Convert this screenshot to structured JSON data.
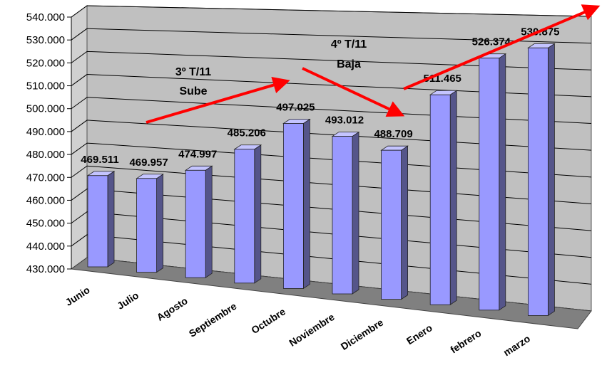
{
  "chart_data": {
    "type": "bar",
    "categories": [
      "Junio",
      "Julio",
      "Agosto",
      "Septiembre",
      "Octubre",
      "Noviembre",
      "Diciembre",
      "Enero",
      "febrero",
      "marzo"
    ],
    "values": [
      469511,
      469957,
      474997,
      485206,
      497025,
      493012,
      488709,
      511465,
      526374,
      530875
    ],
    "value_labels": [
      "469.511",
      "469.957",
      "474.997",
      "485.206",
      "497.025",
      "493.012",
      "488.709",
      "511.465",
      "526.374",
      "530.875"
    ],
    "ylim": [
      430000,
      540000
    ],
    "yticks": [
      430000,
      440000,
      450000,
      460000,
      470000,
      480000,
      490000,
      500000,
      510000,
      520000,
      530000,
      540000
    ],
    "ytick_labels": [
      "430.000",
      "440.000",
      "450.000",
      "460.000",
      "470.000",
      "480.000",
      "490.000",
      "500.000",
      "510.000",
      "520.000",
      "530.000",
      "540.000"
    ],
    "title": "",
    "xlabel": "",
    "ylabel": "",
    "grid": true,
    "style": "3d-perspective-column",
    "colors": {
      "bar_front": "#9999ff",
      "bar_side": "#55558a",
      "bar_top": "#c4c4ff",
      "wall": "#c0c0c0",
      "floor": "#808080",
      "arrow": "#ff0000"
    },
    "annotations": [
      {
        "lines": [
          "3º T/11",
          "Sube"
        ],
        "trend": "up"
      },
      {
        "lines": [
          "4º T/11",
          "Baja"
        ],
        "trend": "down"
      }
    ]
  }
}
